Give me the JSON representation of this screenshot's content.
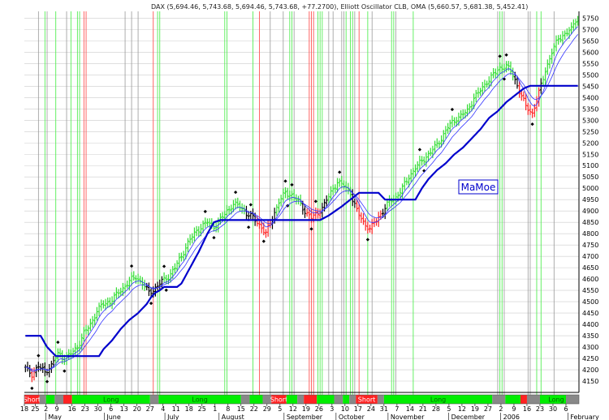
{
  "header": "DAX (5,694.46, 5,743.68, 5,694.46, 5,743.68, +77.2700), Elliott Oscillator CLB, OMA (5,660.57, 5,681.38, 5,452.41)",
  "watermark": "MaMoe",
  "chart_data": {
    "type": "candlestick",
    "title": "DAX (5,694.46, 5,743.68, 5,694.46, 5,743.68, +77.2700), Elliott Oscillator CLB, OMA (5,660.57, 5,681.38, 5,452.41)",
    "ylim": [
      4100,
      5780
    ],
    "y_ticks": [
      4150,
      4200,
      4250,
      4300,
      4350,
      4400,
      4450,
      4500,
      4550,
      4600,
      4650,
      4700,
      4750,
      4800,
      4850,
      4900,
      4950,
      5000,
      5050,
      5100,
      5150,
      5200,
      5250,
      5300,
      5350,
      5400,
      5450,
      5500,
      5550,
      5600,
      5650,
      5700,
      5750
    ],
    "grid": true,
    "x_day_labels": [
      {
        "t": 0,
        "label": "18"
      },
      {
        "t": 5,
        "label": "25"
      },
      {
        "t": 10,
        "label": "2"
      },
      {
        "t": 15,
        "label": "9"
      },
      {
        "t": 22,
        "label": "16"
      },
      {
        "t": 28,
        "label": "23"
      },
      {
        "t": 34,
        "label": "30"
      },
      {
        "t": 40,
        "label": "6"
      },
      {
        "t": 46,
        "label": "13"
      },
      {
        "t": 52,
        "label": "20"
      },
      {
        "t": 58,
        "label": "27"
      },
      {
        "t": 64,
        "label": "4"
      },
      {
        "t": 70,
        "label": "11"
      },
      {
        "t": 76,
        "label": "18"
      },
      {
        "t": 82,
        "label": "25"
      },
      {
        "t": 88,
        "label": "1"
      },
      {
        "t": 94,
        "label": "8"
      },
      {
        "t": 100,
        "label": "15"
      },
      {
        "t": 106,
        "label": "22"
      },
      {
        "t": 112,
        "label": "29"
      },
      {
        "t": 118,
        "label": "5"
      },
      {
        "t": 124,
        "label": "12"
      },
      {
        "t": 130,
        "label": "19"
      },
      {
        "t": 136,
        "label": "26"
      },
      {
        "t": 142,
        "label": "3"
      },
      {
        "t": 148,
        "label": "10"
      },
      {
        "t": 154,
        "label": "17"
      },
      {
        "t": 160,
        "label": "24"
      },
      {
        "t": 166,
        "label": "31"
      },
      {
        "t": 172,
        "label": "7"
      },
      {
        "t": 178,
        "label": "14"
      },
      {
        "t": 184,
        "label": "21"
      },
      {
        "t": 190,
        "label": "28"
      },
      {
        "t": 196,
        "label": "5"
      },
      {
        "t": 202,
        "label": "12"
      },
      {
        "t": 208,
        "label": "19"
      },
      {
        "t": 214,
        "label": "27"
      },
      {
        "t": 220,
        "label": "2"
      },
      {
        "t": 226,
        "label": "9"
      },
      {
        "t": 232,
        "label": "16"
      },
      {
        "t": 238,
        "label": "23"
      },
      {
        "t": 244,
        "label": "30"
      },
      {
        "t": 250,
        "label": "6"
      }
    ],
    "x_month_labels": [
      {
        "t": 11,
        "label": "May"
      },
      {
        "t": 38,
        "label": "June"
      },
      {
        "t": 66,
        "label": "July"
      },
      {
        "t": 91,
        "label": "August"
      },
      {
        "t": 121,
        "label": "September"
      },
      {
        "t": 145,
        "label": "October"
      },
      {
        "t": 169,
        "label": "November"
      },
      {
        "t": 197,
        "label": "December"
      },
      {
        "t": 221,
        "label": "2006"
      },
      {
        "t": 252,
        "label": "February"
      }
    ],
    "price_anchors": [
      [
        0,
        4205
      ],
      [
        3,
        4180
      ],
      [
        6,
        4215
      ],
      [
        9,
        4190
      ],
      [
        12,
        4220
      ],
      [
        15,
        4270
      ],
      [
        18,
        4250
      ],
      [
        21,
        4270
      ],
      [
        24,
        4300
      ],
      [
        27,
        4360
      ],
      [
        30,
        4400
      ],
      [
        33,
        4460
      ],
      [
        36,
        4490
      ],
      [
        39,
        4500
      ],
      [
        42,
        4530
      ],
      [
        45,
        4560
      ],
      [
        48,
        4590
      ],
      [
        51,
        4610
      ],
      [
        54,
        4580
      ],
      [
        57,
        4540
      ],
      [
        60,
        4560
      ],
      [
        63,
        4590
      ],
      [
        66,
        4610
      ],
      [
        69,
        4650
      ],
      [
        72,
        4700
      ],
      [
        75,
        4760
      ],
      [
        78,
        4800
      ],
      [
        81,
        4830
      ],
      [
        84,
        4850
      ],
      [
        87,
        4830
      ],
      [
        90,
        4860
      ],
      [
        93,
        4900
      ],
      [
        96,
        4930
      ],
      [
        99,
        4920
      ],
      [
        102,
        4890
      ],
      [
        105,
        4870
      ],
      [
        108,
        4840
      ],
      [
        111,
        4800
      ],
      [
        114,
        4870
      ],
      [
        117,
        4940
      ],
      [
        120,
        4980
      ],
      [
        123,
        4970
      ],
      [
        126,
        4940
      ],
      [
        129,
        4900
      ],
      [
        132,
        4870
      ],
      [
        135,
        4890
      ],
      [
        138,
        4930
      ],
      [
        141,
        4980
      ],
      [
        144,
        5030
      ],
      [
        147,
        5010
      ],
      [
        150,
        4980
      ],
      [
        153,
        4900
      ],
      [
        156,
        4850
      ],
      [
        159,
        4820
      ],
      [
        162,
        4860
      ],
      [
        165,
        4900
      ],
      [
        168,
        4940
      ],
      [
        171,
        4960
      ],
      [
        174,
        5000
      ],
      [
        177,
        5050
      ],
      [
        180,
        5090
      ],
      [
        183,
        5120
      ],
      [
        186,
        5150
      ],
      [
        189,
        5180
      ],
      [
        192,
        5220
      ],
      [
        195,
        5270
      ],
      [
        198,
        5300
      ],
      [
        201,
        5320
      ],
      [
        204,
        5340
      ],
      [
        207,
        5400
      ],
      [
        210,
        5430
      ],
      [
        213,
        5470
      ],
      [
        216,
        5500
      ],
      [
        219,
        5530
      ],
      [
        222,
        5540
      ],
      [
        225,
        5500
      ],
      [
        228,
        5430
      ],
      [
        231,
        5360
      ],
      [
        234,
        5330
      ],
      [
        237,
        5420
      ],
      [
        240,
        5520
      ],
      [
        243,
        5600
      ],
      [
        246,
        5660
      ],
      [
        249,
        5680
      ],
      [
        252,
        5700
      ],
      [
        254,
        5744
      ]
    ],
    "oma": {
      "name": "OMA",
      "values": [
        5660.57,
        5681.38,
        5452.41
      ],
      "slow_steps": [
        [
          0,
          4350
        ],
        [
          7,
          4350
        ],
        [
          10,
          4300
        ],
        [
          14,
          4260
        ],
        [
          34,
          4260
        ],
        [
          36,
          4290
        ],
        [
          40,
          4330
        ],
        [
          44,
          4380
        ],
        [
          48,
          4420
        ],
        [
          52,
          4450
        ],
        [
          54,
          4470
        ],
        [
          56,
          4490
        ],
        [
          58,
          4520
        ],
        [
          60,
          4540
        ],
        [
          62,
          4550
        ],
        [
          64,
          4565
        ],
        [
          70,
          4565
        ],
        [
          72,
          4580
        ],
        [
          76,
          4650
        ],
        [
          80,
          4720
        ],
        [
          84,
          4800
        ],
        [
          87,
          4850
        ],
        [
          90,
          4860
        ],
        [
          136,
          4860
        ],
        [
          140,
          4880
        ],
        [
          146,
          4920
        ],
        [
          150,
          4950
        ],
        [
          154,
          4980
        ],
        [
          163,
          4980
        ],
        [
          166,
          4950
        ],
        [
          180,
          4950
        ],
        [
          183,
          5000
        ],
        [
          186,
          5040
        ],
        [
          190,
          5080
        ],
        [
          194,
          5110
        ],
        [
          198,
          5150
        ],
        [
          202,
          5180
        ],
        [
          206,
          5220
        ],
        [
          210,
          5260
        ],
        [
          214,
          5310
        ],
        [
          218,
          5340
        ],
        [
          222,
          5380
        ],
        [
          226,
          5410
        ],
        [
          230,
          5440
        ],
        [
          233,
          5452
        ],
        [
          254,
          5452
        ]
      ]
    },
    "vertical_lines": {
      "green": [
        9,
        14,
        21,
        24,
        25,
        61,
        62,
        92,
        93,
        105,
        122,
        123,
        135,
        136,
        137,
        148,
        150,
        151,
        158,
        169,
        170,
        179,
        219,
        220,
        236,
        238
      ],
      "red": [
        27,
        28,
        59,
        108,
        131,
        132,
        133,
        154
      ],
      "gray": [
        6,
        10,
        19,
        46,
        49,
        52,
        113,
        119,
        124,
        140,
        142,
        146,
        147,
        152,
        160,
        171,
        218,
        221,
        232,
        233,
        244
      ]
    },
    "signal_band": [
      {
        "from": 0,
        "to": 7,
        "state": "short",
        "label": "Short"
      },
      {
        "from": 7,
        "to": 10,
        "state": "gray"
      },
      {
        "from": 10,
        "to": 14,
        "state": "green"
      },
      {
        "from": 14,
        "to": 18,
        "state": "gray"
      },
      {
        "from": 18,
        "to": 22,
        "state": "red"
      },
      {
        "from": 22,
        "to": 58,
        "state": "long",
        "label": "Long"
      },
      {
        "from": 58,
        "to": 62,
        "state": "gray"
      },
      {
        "from": 62,
        "to": 100,
        "state": "long",
        "label": "Long"
      },
      {
        "from": 100,
        "to": 104,
        "state": "gray"
      },
      {
        "from": 104,
        "to": 110,
        "state": "green"
      },
      {
        "from": 110,
        "to": 114,
        "state": "gray"
      },
      {
        "from": 114,
        "to": 121,
        "state": "short",
        "label": "Short"
      },
      {
        "from": 121,
        "to": 126,
        "state": "green"
      },
      {
        "from": 126,
        "to": 129,
        "state": "gray"
      },
      {
        "from": 129,
        "to": 135,
        "state": "red"
      },
      {
        "from": 135,
        "to": 143,
        "state": "green"
      },
      {
        "from": 143,
        "to": 147,
        "state": "gray"
      },
      {
        "from": 147,
        "to": 150,
        "state": "green"
      },
      {
        "from": 150,
        "to": 153,
        "state": "gray"
      },
      {
        "from": 153,
        "to": 163,
        "state": "short",
        "label": "Short"
      },
      {
        "from": 163,
        "to": 166,
        "state": "gray"
      },
      {
        "from": 166,
        "to": 216,
        "state": "long",
        "label": "Long"
      },
      {
        "from": 216,
        "to": 222,
        "state": "gray"
      },
      {
        "from": 222,
        "to": 229,
        "state": "green"
      },
      {
        "from": 229,
        "to": 232,
        "state": "red"
      },
      {
        "from": 232,
        "to": 238,
        "state": "gray"
      },
      {
        "from": 238,
        "to": 241,
        "state": "green"
      },
      {
        "from": 241,
        "to": 250,
        "state": "long",
        "label": "Long"
      },
      {
        "from": 250,
        "to": 256,
        "state": "gray"
      }
    ]
  },
  "colors": {
    "up_bar": "#33dd33",
    "down_bar": "#ff2222",
    "neutral_bar": "#000000",
    "oma_slow": "#0000cc",
    "oma_fast": "#3333ff",
    "grid": "#cccccc",
    "vline_green": "#55ee55",
    "vline_red": "#ff5555",
    "vline_gray": "#999999",
    "band_long": "#00ee00",
    "band_short": "#ff2222",
    "band_gray": "#888888",
    "watermark": "#0000cc"
  }
}
